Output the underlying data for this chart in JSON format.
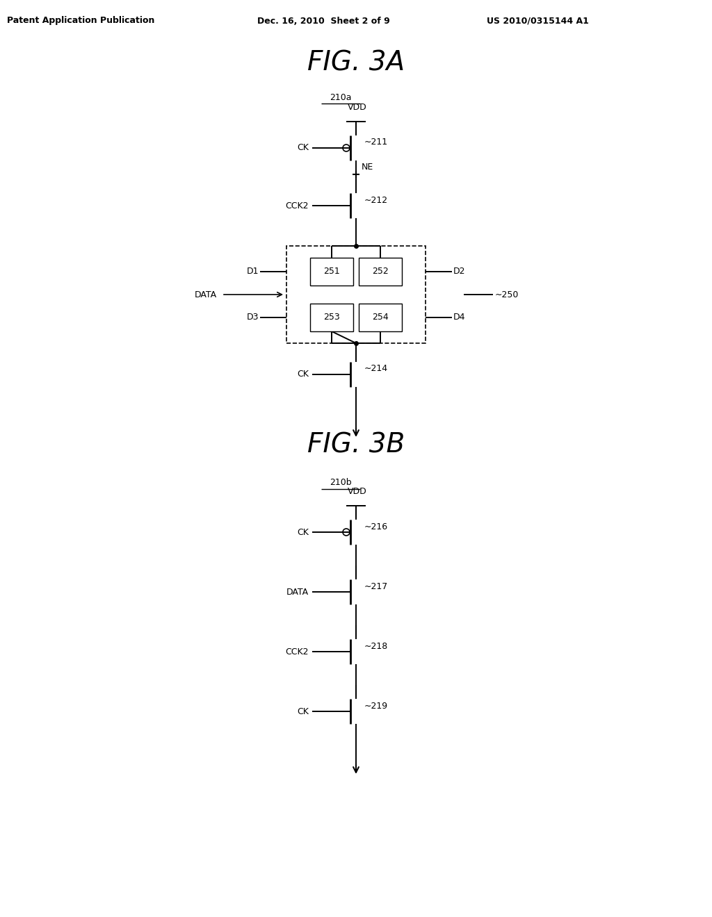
{
  "bg_color": "#ffffff",
  "header_left": "Patent Application Publication",
  "header_center": "Dec. 16, 2010  Sheet 2 of 9",
  "header_right": "US 2010/0315144 A1",
  "fig3a_title": "FIG. 3A",
  "fig3b_title": "FIG. 3B",
  "label_210a": "210a",
  "label_210b": "210b",
  "fig_width": 10.24,
  "fig_height": 13.2,
  "dpi": 100
}
